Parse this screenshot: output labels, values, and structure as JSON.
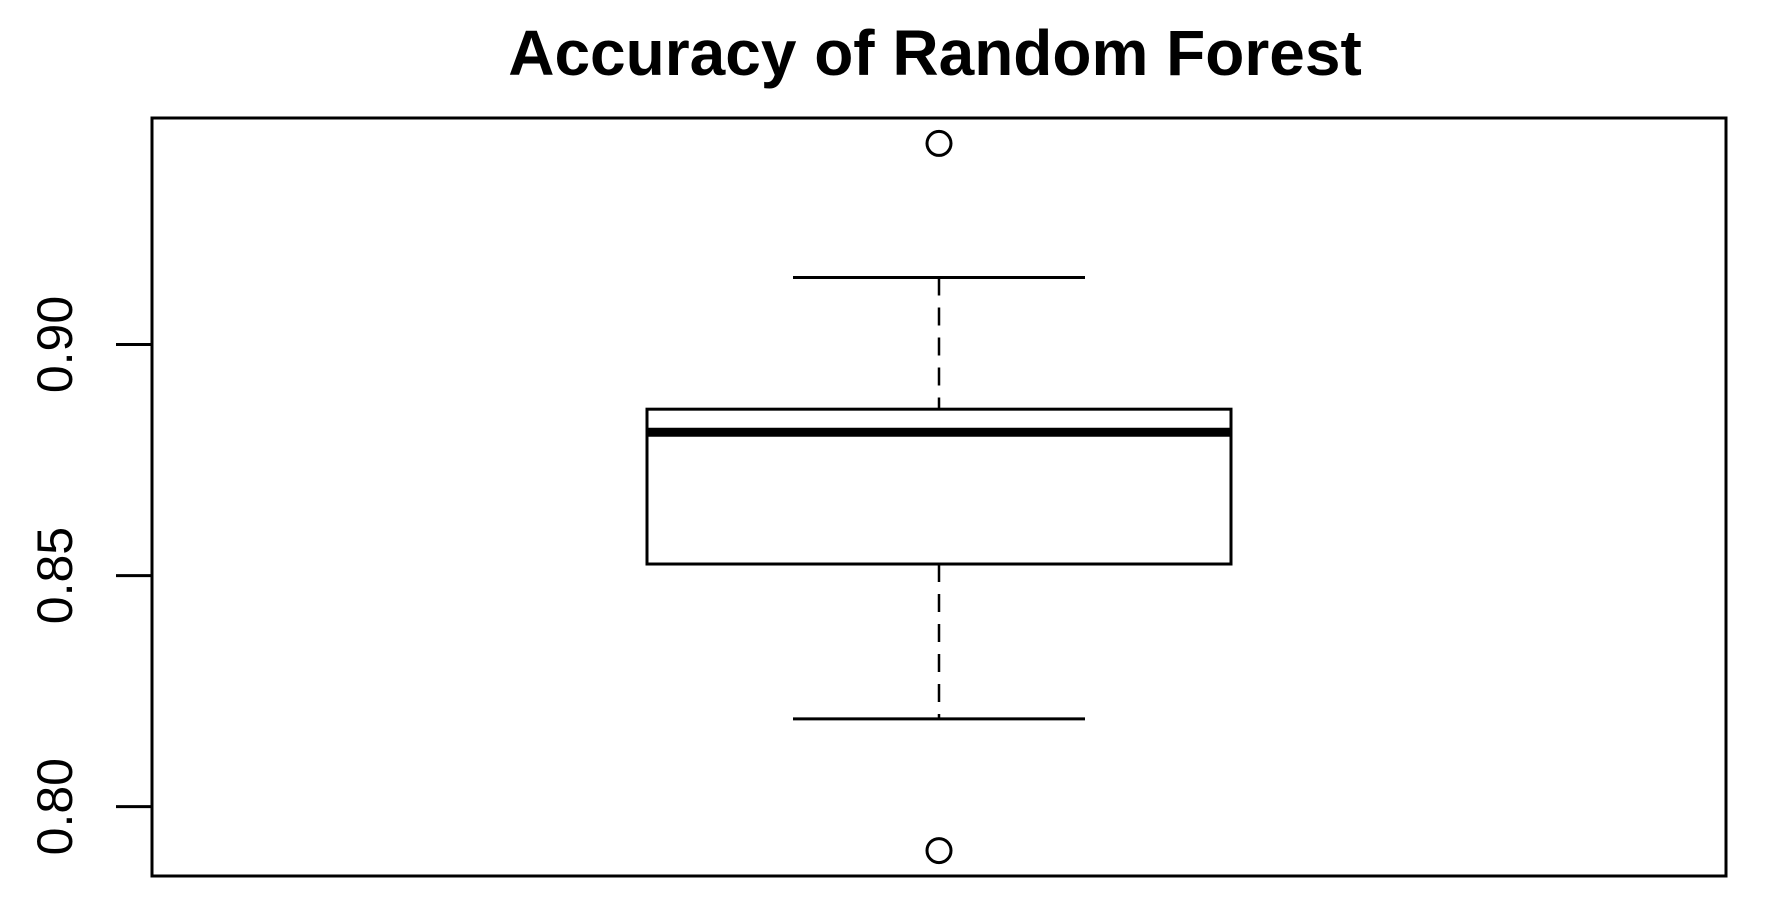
{
  "chart_data": {
    "type": "boxplot",
    "title": "Accuracy of Random Forest",
    "xlabel": "",
    "ylabel": "",
    "ylim": [
      0.785,
      0.949
    ],
    "y_ticks": [
      0.8,
      0.85,
      0.9
    ],
    "y_tick_labels": [
      "0.80",
      "0.85",
      "0.90"
    ],
    "grid": false,
    "series": [
      {
        "min": 0.819,
        "q1": 0.8525,
        "median": 0.881,
        "q3": 0.886,
        "max": 0.9145,
        "outliers": [
          0.9435,
          0.7905
        ]
      }
    ]
  }
}
